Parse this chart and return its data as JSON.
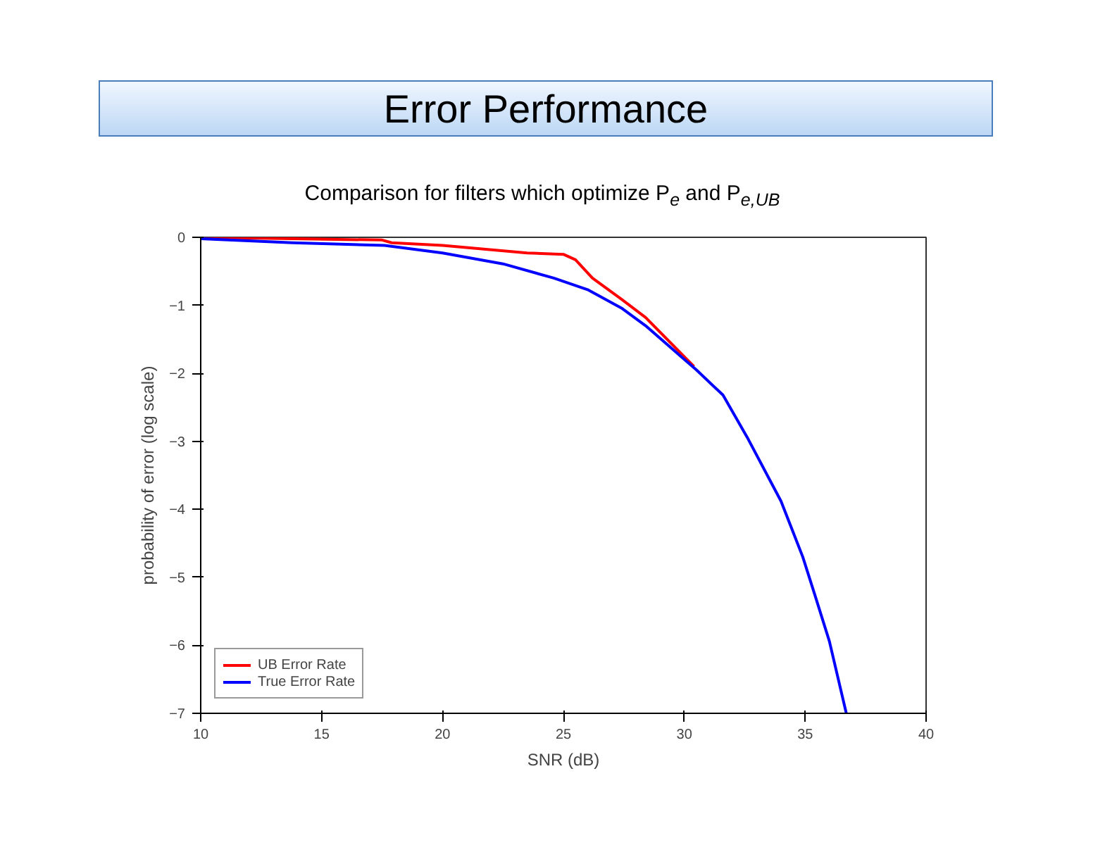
{
  "chart_data": {
    "type": "line",
    "title": "Error Performance",
    "subtitle": "Comparison for filters which optimize P$_{e}$ and P$_{e,UB}$",
    "xlabel": "SNR (dB)",
    "ylabel": "probability of error (log scale)",
    "series": [
      {
        "name": "UB Error Rate",
        "color": "#ff0000",
        "x": [
          10,
          17.5,
          17.9,
          20.0,
          23.5,
          25.0,
          25.5,
          26.2,
          27.4,
          28.4,
          30.4
        ],
        "values": [
          0,
          -0.04,
          -0.08,
          -0.12,
          -0.23,
          -0.25,
          -0.33,
          -0.6,
          -0.91,
          -1.18,
          -1.9
        ]
      },
      {
        "name": "True Error Rate",
        "color": "#0000ff",
        "x": [
          10,
          13.8,
          17.6,
          20.0,
          22.5,
          24.6,
          26.0,
          27.4,
          28.4,
          30.5,
          31.6,
          32.6,
          34.0,
          34.9,
          35.4,
          36.0,
          36.7
        ],
        "values": [
          -0.02,
          -0.08,
          -0.12,
          -0.23,
          -0.39,
          -0.6,
          -0.77,
          -1.04,
          -1.3,
          -1.95,
          -2.32,
          -2.94,
          -3.88,
          -4.7,
          -5.26,
          -5.94,
          -7.0
        ]
      }
    ],
    "xlim": [
      10,
      40
    ],
    "xticks": [
      10,
      15,
      20,
      25,
      30,
      35,
      40
    ],
    "ylim": [
      -7,
      0
    ],
    "yticks": [
      -7,
      -6,
      -5,
      -4,
      -3,
      -2,
      -1,
      0
    ],
    "grid": false,
    "legend": "bottom left",
    "line_style": "solid",
    "marker": "none"
  }
}
